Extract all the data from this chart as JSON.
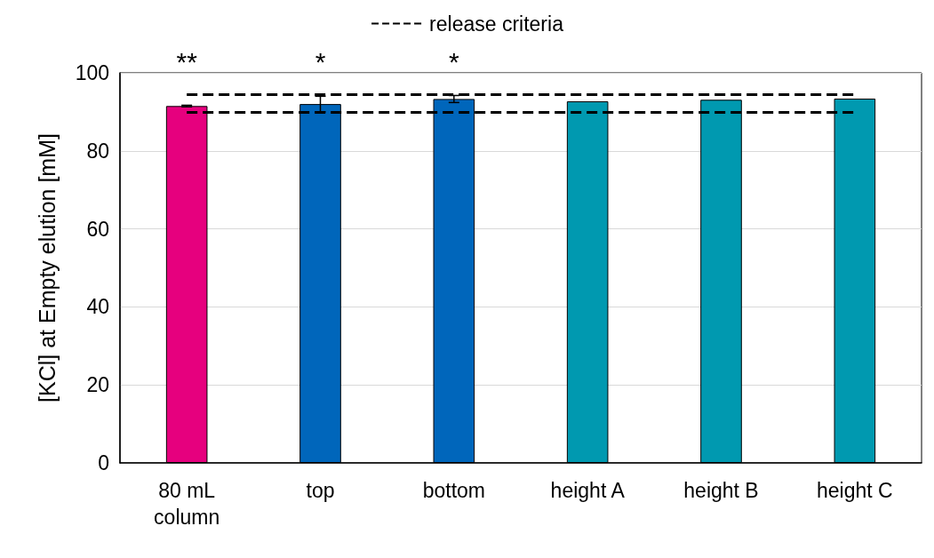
{
  "chart_data": {
    "type": "bar",
    "ylabel": "[KCl] at Empty elution [mM]",
    "categories": [
      "80 mL\ncolumn",
      "top",
      "bottom",
      "height A",
      "height B",
      "height C"
    ],
    "values": [
      91.5,
      92,
      93.3,
      92.7,
      93.1,
      93.4
    ],
    "colors": [
      "#e6007e",
      "#0066bb",
      "#0066bb",
      "#0099b0",
      "#0099b0",
      "#0099b0"
    ],
    "errors": [
      0.2,
      2,
      0.9,
      null,
      null,
      null
    ],
    "ylim": [
      0,
      100
    ],
    "yticks": [
      0,
      20,
      40,
      60,
      80,
      100
    ],
    "grid": "y",
    "legend": "top",
    "ref_lines": [
      {
        "axis": "y",
        "value": 94.5,
        "label": "release criteria",
        "line_style": "dashed",
        "color": "#000000"
      },
      {
        "axis": "y",
        "value": 90,
        "line_style": "dashed",
        "color": "#000000"
      }
    ],
    "annotations": [
      "**",
      "*",
      "*"
    ]
  }
}
